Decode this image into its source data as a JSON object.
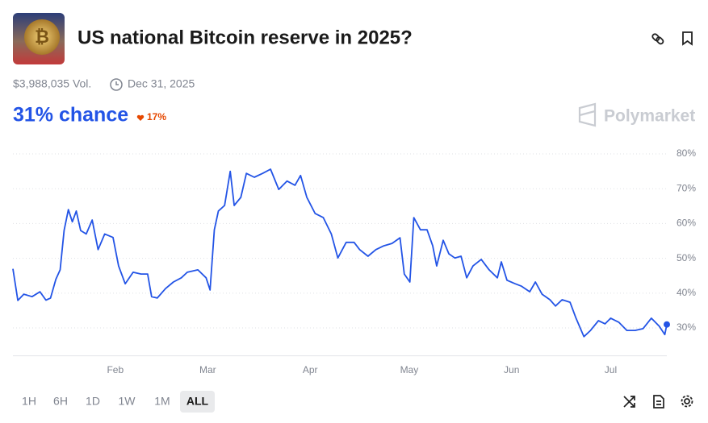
{
  "header": {
    "title": "US national Bitcoin reserve in 2025?",
    "volume": "$3,988,035 Vol.",
    "end_date": "Dec 31, 2025",
    "brand": "Polymarket"
  },
  "summary": {
    "chance": "31% chance",
    "change": "17%"
  },
  "chart_data": {
    "type": "line",
    "color": "#2354e6",
    "x": [
      0,
      1.5,
      3.3,
      5.8,
      8.2,
      10,
      11.4,
      13,
      14.3,
      15.5,
      16.8,
      18,
      19.2,
      20.5,
      22.2,
      24,
      25.8,
      27.8,
      30.3,
      32,
      34,
      36.4,
      38.8,
      40.8,
      42,
      43.7,
      46.2,
      48.6,
      51,
      52.8,
      56,
      58.5,
      59.7,
      61,
      62.2,
      64.1,
      65.8,
      67,
      69,
      70.7,
      73.1,
      75.6,
      78,
      80.5,
      83,
      85.4,
      87.1,
      89,
      91.5,
      94,
      96.4,
      98.4,
      100.9,
      103.3,
      105,
      107.5,
      109.9,
      112.3,
      114.8,
      117.2,
      118.5,
      120.2,
      121.4,
      123.4,
      125.4,
      127.1,
      128.3,
      130.3,
      132,
      133.8,
      135.7,
      137.4,
      139.3,
      141.8,
      144.2,
      146.7,
      147.9,
      149.6,
      152.1,
      154,
      156.5,
      158.2,
      160.2,
      162.6,
      164.3,
      166.3,
      168.7,
      170.5,
      172.9,
      174.9,
      177.3,
      179.3,
      181,
      183.5,
      185.9,
      188.4,
      190.8,
      193.3,
      195.7,
      197.4,
      198
    ],
    "values": [
      47,
      37.9,
      39.7,
      39,
      40.4,
      38,
      38.6,
      44,
      46.7,
      58,
      64,
      60.5,
      63.6,
      58,
      57,
      61,
      52.5,
      57,
      56,
      47.8,
      42.7,
      46,
      45.5,
      45.5,
      39,
      38.6,
      41.3,
      43.2,
      44.4,
      46,
      46.7,
      44.4,
      40.9,
      58.2,
      63.6,
      65.2,
      75,
      65.2,
      67.5,
      74.4,
      73.3,
      74.4,
      75.6,
      69.8,
      72.2,
      71,
      73.8,
      67.5,
      62.9,
      61.7,
      57,
      50.1,
      54.6,
      54.6,
      52.5,
      50.6,
      52.5,
      53.6,
      54.3,
      55.9,
      45.5,
      43.2,
      61.7,
      58.2,
      58.2,
      53.6,
      47.8,
      55.2,
      51.3,
      50.1,
      50.6,
      44.4,
      47.8,
      49.7,
      46.7,
      44.4,
      49,
      43.7,
      42.7,
      42,
      40.4,
      43.2,
      39.7,
      38.1,
      36.3,
      38.1,
      37.4,
      32.8,
      27.5,
      29.3,
      32.1,
      31.2,
      32.8,
      31.6,
      29.3,
      29.3,
      29.8,
      32.8,
      30.5,
      28.1,
      31
    ],
    "xlim": [
      0,
      198
    ],
    "xticks": [
      {
        "value": 31,
        "label": "Feb"
      },
      {
        "value": 59,
        "label": "Mar"
      },
      {
        "value": 90,
        "label": "Apr"
      },
      {
        "value": 120,
        "label": "May"
      },
      {
        "value": 151,
        "label": "Jun"
      },
      {
        "value": 181,
        "label": "Jul"
      }
    ],
    "ylim": [
      22,
      81
    ],
    "yticks": [
      {
        "value": 30,
        "label": "30%"
      },
      {
        "value": 40,
        "label": "40%"
      },
      {
        "value": 50,
        "label": "50%"
      },
      {
        "value": 60,
        "label": "60%"
      },
      {
        "value": 70,
        "label": "70%"
      },
      {
        "value": 80,
        "label": "80%"
      }
    ],
    "grid": true
  },
  "timeframes": [
    "1H",
    "6H",
    "1D",
    "1W",
    "1M",
    "ALL"
  ]
}
